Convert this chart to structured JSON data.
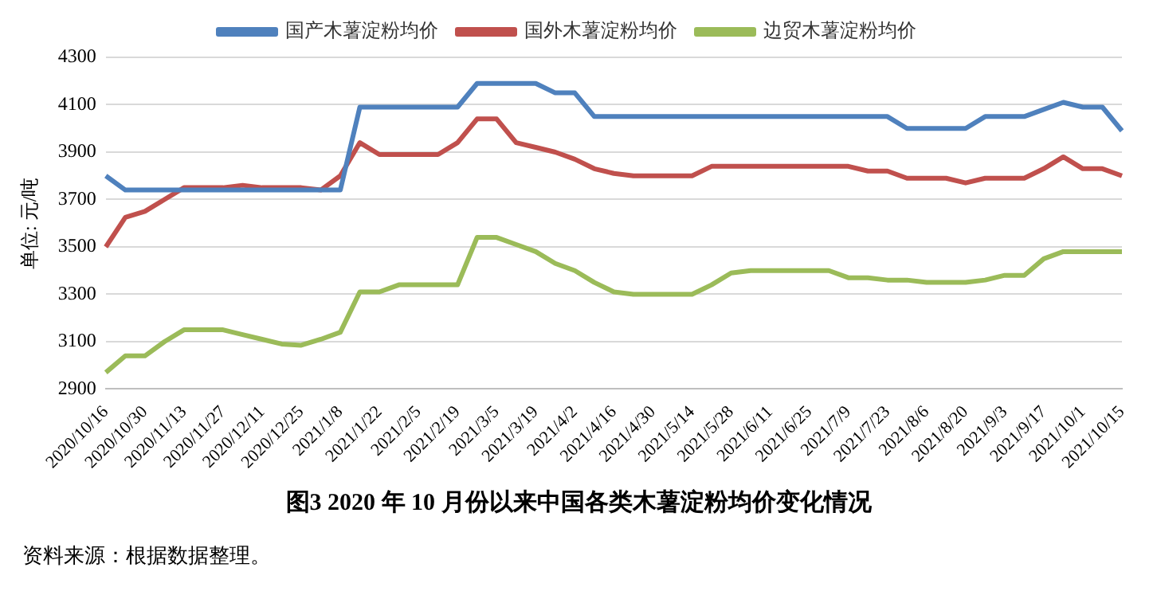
{
  "chart_data": {
    "type": "line",
    "title": "图3   2020 年 10 月份以来中国各类木薯淀粉均价变化情况",
    "ylabel": "单位: 元/吨",
    "annotations": [
      "资料来源：根据数据整理。"
    ],
    "categories": [
      "2020/10/16",
      null,
      "2020/10/30",
      null,
      "2020/11/13",
      null,
      "2020/11/27",
      null,
      "2020/12/11",
      null,
      "2020/12/25",
      null,
      "2021/1/8",
      null,
      "2021/1/22",
      null,
      "2021/2/5",
      null,
      "2021/2/19",
      null,
      "2021/3/5",
      null,
      "2021/3/19",
      null,
      "2021/4/2",
      null,
      "2021/4/16",
      null,
      "2021/4/30",
      null,
      "2021/5/14",
      null,
      "2021/5/28",
      null,
      "2021/6/11",
      null,
      "2021/6/25",
      null,
      "2021/7/9",
      null,
      "2021/7/23",
      null,
      "2021/8/6",
      null,
      "2021/8/20",
      null,
      "2021/9/3",
      null,
      "2021/9/17",
      null,
      "2021/10/1",
      null,
      "2021/10/15"
    ],
    "series": [
      {
        "name": "国产木薯淀粉均价",
        "color": "#4f81bd",
        "values": [
          3800,
          3740,
          3740,
          3740,
          3740,
          3740,
          3740,
          3740,
          3740,
          3740,
          3740,
          3740,
          3740,
          4090,
          4090,
          4090,
          4090,
          4090,
          4090,
          4190,
          4190,
          4190,
          4190,
          4150,
          4150,
          4050,
          4050,
          4050,
          4050,
          4050,
          4050,
          4050,
          4050,
          4050,
          4050,
          4050,
          4050,
          4050,
          4050,
          4050,
          4050,
          4000,
          4000,
          4000,
          4000,
          4050,
          4050,
          4050,
          4080,
          4110,
          4090,
          4090,
          3990
        ]
      },
      {
        "name": "国外木薯淀粉均价",
        "color": "#c0504d",
        "values": [
          3500,
          3625,
          3650,
          3700,
          3750,
          3750,
          3750,
          3760,
          3750,
          3750,
          3750,
          3740,
          3800,
          3940,
          3890,
          3890,
          3890,
          3890,
          3940,
          4040,
          4040,
          3940,
          3920,
          3900,
          3870,
          3830,
          3810,
          3800,
          3800,
          3800,
          3800,
          3840,
          3840,
          3840,
          3840,
          3840,
          3840,
          3840,
          3840,
          3820,
          3820,
          3790,
          3790,
          3790,
          3770,
          3790,
          3790,
          3790,
          3830,
          3880,
          3830,
          3830,
          3800
        ]
      },
      {
        "name": "边贸木薯淀粉均价",
        "color": "#9bbb59",
        "values": [
          2970,
          3040,
          3040,
          3100,
          3150,
          3150,
          3150,
          3130,
          3110,
          3090,
          3085,
          3110,
          3140,
          3310,
          3310,
          3340,
          3340,
          3340,
          3340,
          3540,
          3540,
          3510,
          3480,
          3430,
          3400,
          3350,
          3310,
          3300,
          3300,
          3300,
          3300,
          3340,
          3390,
          3400,
          3400,
          3400,
          3400,
          3400,
          3370,
          3370,
          3360,
          3360,
          3350,
          3350,
          3350,
          3360,
          3380,
          3380,
          3450,
          3480,
          3480,
          3480,
          3480
        ]
      }
    ],
    "ylim": [
      2900,
      4300
    ],
    "yticks": [
      2900,
      3100,
      3300,
      3500,
      3700,
      3900,
      4100,
      4300
    ],
    "grid": "y",
    "legend": "top",
    "marker": "none",
    "line_style": "solid"
  }
}
